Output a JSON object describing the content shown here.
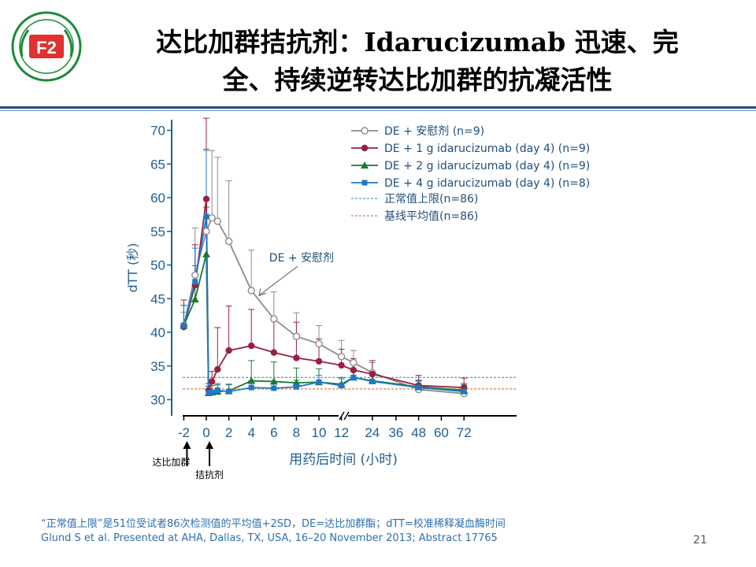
{
  "slide": {
    "title_line1": "达比加群拮抗剂：Idarucizumab 迅速、完",
    "title_line2": "全、持续逆转达比加群的抗凝活性",
    "footnote1": "“正常值上限”是51位受试者86次检测值的平均值+2SD，DE=达比加群酯；dTT=校准稀释凝血酶时间",
    "footnote2": "Glund S et al. Presented at AHA, Dallas, TX, USA, 16–20 November 2013; Abstract 17765",
    "page_number": "21",
    "logo_text": "F2"
  },
  "chart_data": {
    "type": "line",
    "ylabel": "dTT (秒)",
    "xlabel": "用药后时间 (小时)",
    "ylim": [
      29,
      71
    ],
    "yticks": [
      30,
      35,
      40,
      45,
      50,
      55,
      60,
      65,
      70
    ],
    "xticks": [
      "-2",
      "0",
      "2",
      "4",
      "6",
      "8",
      "10",
      "12",
      "24",
      "36",
      "48",
      "60",
      "72"
    ],
    "legend_position": "top-right",
    "series": [
      {
        "name": "DE + 安慰剂 (n=9)",
        "color": "#8c8c8c",
        "marker": "circle-open",
        "points": [
          {
            "x": -2,
            "y": 41,
            "err": 2
          },
          {
            "x": -1,
            "y": 48.5,
            "err": 7
          },
          {
            "x": 0,
            "y": 55,
            "err": 12
          },
          {
            "x": 0.5,
            "y": 57,
            "err": 10
          },
          {
            "x": 1,
            "y": 56.5,
            "err": 9.5
          },
          {
            "x": 2,
            "y": 53.5,
            "err": 9
          },
          {
            "x": 4,
            "y": 46.2,
            "err": 6
          },
          {
            "x": 6,
            "y": 42,
            "err": 4
          },
          {
            "x": 8,
            "y": 39.4,
            "err": 3.5
          },
          {
            "x": 10,
            "y": 38.3,
            "err": 2.7
          },
          {
            "x": 12,
            "y": 36.4,
            "err": 2.4
          },
          {
            "x": 14,
            "y": 35.5,
            "err": 1.8
          },
          {
            "x": 24,
            "y": 34,
            "err": 1.5
          },
          {
            "x": 48,
            "y": 31.5,
            "err": 1.2
          },
          {
            "x": 72,
            "y": 30.9,
            "err": 1
          }
        ]
      },
      {
        "name": "DE + 1 g idarucizumab (day 4) (n=9)",
        "color": "#9b2040",
        "marker": "circle",
        "points": [
          {
            "x": -2,
            "y": 40.8,
            "err": 4
          },
          {
            "x": -1,
            "y": 47,
            "err": 6
          },
          {
            "x": 0,
            "y": 59.8,
            "err": 12
          },
          {
            "x": 0.2,
            "y": 31.4,
            "err": 1
          },
          {
            "x": 0.5,
            "y": 32.7,
            "err": 1.5
          },
          {
            "x": 1,
            "y": 34.5,
            "err": 6.2
          },
          {
            "x": 2,
            "y": 37.3,
            "err": 6.6
          },
          {
            "x": 4,
            "y": 38,
            "err": 5.4
          },
          {
            "x": 6,
            "y": 37,
            "err": 4.8
          },
          {
            "x": 8,
            "y": 36.2,
            "err": 5.3
          },
          {
            "x": 10,
            "y": 35.7,
            "err": 3.3
          },
          {
            "x": 12,
            "y": 35.1,
            "err": 2.4
          },
          {
            "x": 14,
            "y": 34.4,
            "err": 1.7
          },
          {
            "x": 24,
            "y": 33.8,
            "err": 2
          },
          {
            "x": 48,
            "y": 32.1,
            "err": 1.5
          },
          {
            "x": 72,
            "y": 31.8,
            "err": 1.4
          }
        ]
      },
      {
        "name": "DE + 2 g idarucizumab (day 4) (n=9)",
        "color": "#1a7a30",
        "marker": "triangle",
        "points": [
          {
            "x": -2,
            "y": 41,
            "err": 3
          },
          {
            "x": -1,
            "y": 44.9,
            "err": 5
          },
          {
            "x": 0,
            "y": 51.6,
            "err": 7
          },
          {
            "x": 0.2,
            "y": 31,
            "err": 1
          },
          {
            "x": 0.5,
            "y": 31.1,
            "err": 1
          },
          {
            "x": 1,
            "y": 31.2,
            "err": 1
          },
          {
            "x": 2,
            "y": 31.3,
            "err": 1
          },
          {
            "x": 4,
            "y": 32.8,
            "err": 3
          },
          {
            "x": 6,
            "y": 32.7,
            "err": 2.9
          },
          {
            "x": 8,
            "y": 32.5,
            "err": 2.2
          },
          {
            "x": 10,
            "y": 32.6,
            "err": 2
          },
          {
            "x": 12,
            "y": 32.3,
            "err": 1
          },
          {
            "x": 14,
            "y": 33.3,
            "err": 1
          },
          {
            "x": 24,
            "y": 32.8,
            "err": 1
          },
          {
            "x": 48,
            "y": 31.9,
            "err": 1
          },
          {
            "x": 72,
            "y": 31.4,
            "err": 1
          }
        ]
      },
      {
        "name": "DE + 4 g idarucizumab (day 4) (n=8)",
        "color": "#1f77c8",
        "marker": "square",
        "points": [
          {
            "x": -2,
            "y": 41,
            "err": 3
          },
          {
            "x": -1,
            "y": 47.5,
            "err": 5
          },
          {
            "x": 0,
            "y": 57.2,
            "err": 10
          },
          {
            "x": 0.2,
            "y": 31,
            "err": 1
          },
          {
            "x": 0.5,
            "y": 31.1,
            "err": 1
          },
          {
            "x": 1,
            "y": 31.4,
            "err": 1
          },
          {
            "x": 2,
            "y": 31.2,
            "err": 1
          },
          {
            "x": 4,
            "y": 31.8,
            "err": 1
          },
          {
            "x": 6,
            "y": 31.7,
            "err": 1
          },
          {
            "x": 8,
            "y": 31.9,
            "err": 1
          },
          {
            "x": 10,
            "y": 32.6,
            "err": 1
          },
          {
            "x": 12,
            "y": 32.1,
            "err": 1
          },
          {
            "x": 14,
            "y": 33.3,
            "err": 1
          },
          {
            "x": 24,
            "y": 32.7,
            "err": 1
          },
          {
            "x": 48,
            "y": 31.8,
            "err": 1
          },
          {
            "x": 72,
            "y": 31.2,
            "err": 1
          }
        ]
      }
    ],
    "reference_lines": [
      {
        "name": "正常值上限(n=86)",
        "y": 33.3,
        "color": "#2a8aa8"
      },
      {
        "name": "基线平均值(n=86)",
        "y": 31.6,
        "color": "#c8602a"
      }
    ],
    "annotations": [
      {
        "text": "DE + 安慰剂",
        "x": 6,
        "y": 50.5,
        "arrow_to_x": 4.4,
        "arrow_to_y": 45.7
      }
    ],
    "events": [
      {
        "text": "达比加群",
        "x": -2
      },
      {
        "text": "拮抗剂",
        "x": 0
      }
    ]
  }
}
